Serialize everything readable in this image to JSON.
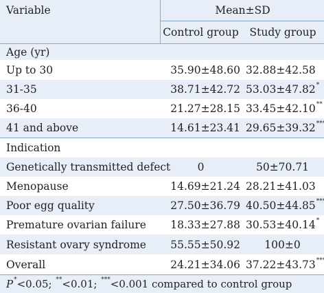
{
  "header": {
    "variable_label": "Variable",
    "mean_sd_label": "Mean±SD",
    "control_label": "Control group",
    "study_label": "Study group"
  },
  "sections": [
    {
      "title": "Age (yr)",
      "rows": [
        {
          "label": "Up to 30",
          "control": "35.90±48.60",
          "study": "32.88±42.58",
          "sig": ""
        },
        {
          "label": "31-35",
          "control": "38.71±42.72",
          "study": "53.03±47.82",
          "sig": "*"
        },
        {
          "label": "36-40",
          "control": "21.27±28.15",
          "study": "33.45±42.10",
          "sig": "**"
        },
        {
          "label": "41 and above",
          "control": "14.61±23.41",
          "study": "29.65±39.32",
          "sig": "***"
        }
      ]
    },
    {
      "title": "Indication",
      "rows": [
        {
          "label": "Genetically transmitted defect",
          "control": "0",
          "study": "50±70.71",
          "sig": ""
        },
        {
          "label": "Menopause",
          "control": "14.69±21.24",
          "study": "28.21±41.03",
          "sig": ""
        },
        {
          "label": "Poor egg quality",
          "control": "27.50±36.79",
          "study": "40.50±44.85",
          "sig": "***"
        },
        {
          "label": "Premature ovarian failure",
          "control": "18.33±27.88",
          "study": "30.53±40.14",
          "sig": "*"
        },
        {
          "label": "Resistant ovary syndrome",
          "control": "55.55±50.92",
          "study": "100±0",
          "sig": ""
        }
      ]
    }
  ],
  "overall": {
    "label": "Overall",
    "control": "24.21±34.06",
    "study": "37.22±43.73",
    "sig": "***"
  },
  "footnote": {
    "p_label": "P",
    "p_sig": "*",
    "p_text": "<0.05; ",
    "sig2": "**",
    "text2": "<0.01; ",
    "sig3": "***",
    "text3": "<0.001 compared to control group"
  }
}
